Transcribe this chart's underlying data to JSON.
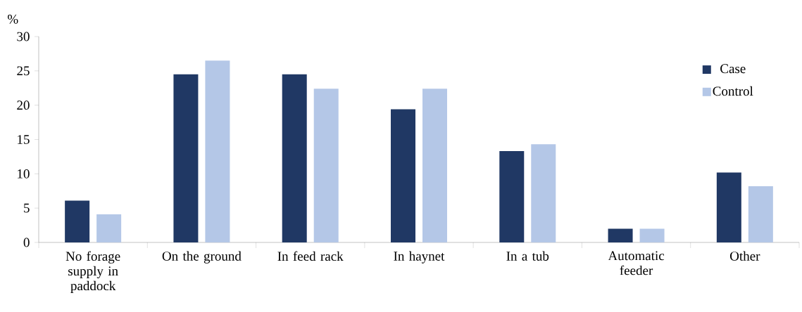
{
  "chart_data": {
    "type": "bar",
    "ylabel": "%",
    "categories": [
      "No forage supply in paddock",
      "On the ground",
      "In feed rack",
      "In haynet",
      "In a tub",
      "Automatic feeder",
      "Other"
    ],
    "series": [
      {
        "name": "Case",
        "color": "#203864",
        "values": [
          6.1,
          24.5,
          24.5,
          19.4,
          13.3,
          2.0,
          10.2
        ]
      },
      {
        "name": "Control",
        "color": "#b4c7e7",
        "values": [
          4.1,
          26.5,
          22.4,
          22.4,
          14.3,
          2.0,
          8.2
        ]
      }
    ],
    "ylim": [
      0,
      30
    ],
    "yticks": [
      0,
      5,
      10,
      15,
      20,
      25,
      30
    ],
    "legend": "top right"
  }
}
